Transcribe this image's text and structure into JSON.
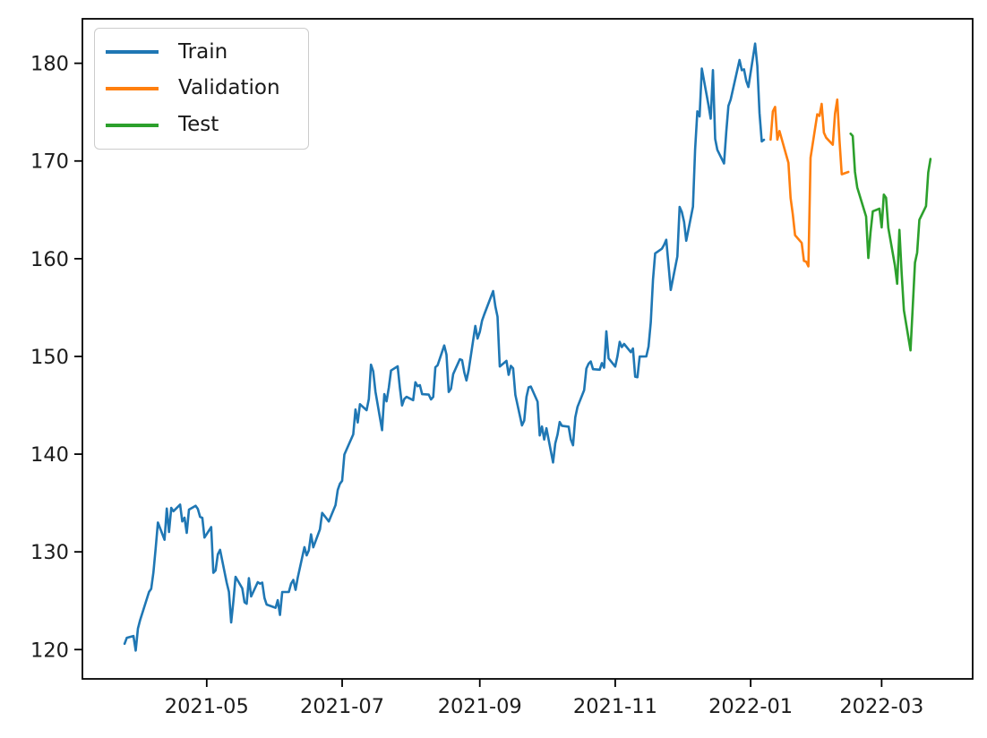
{
  "chart_data": {
    "type": "line",
    "title": "",
    "xlabel": "",
    "ylabel": "",
    "xlim": [
      "2021-03-06",
      "2022-04-11"
    ],
    "ylim": [
      117.0,
      184.55
    ],
    "grid": false,
    "axis_color": "#000000",
    "text_color": "#1c1c1c",
    "x_ticks": [
      {
        "date": "2021-05-01",
        "label": "2021-05"
      },
      {
        "date": "2021-07-01",
        "label": "2021-07"
      },
      {
        "date": "2021-09-01",
        "label": "2021-09"
      },
      {
        "date": "2021-11-01",
        "label": "2021-11"
      },
      {
        "date": "2022-01-01",
        "label": "2022-01"
      },
      {
        "date": "2022-03-01",
        "label": "2022-03"
      }
    ],
    "y_ticks": [
      120,
      130,
      140,
      150,
      160,
      170,
      180
    ],
    "legend": {
      "position": "upper-left",
      "entries": [
        {
          "label": "Train",
          "color": "#1f77b4"
        },
        {
          "label": "Validation",
          "color": "#ff7f0e"
        },
        {
          "label": "Test",
          "color": "#2ca02c"
        }
      ]
    },
    "series": [
      {
        "name": "Train",
        "color": "#1f77b4",
        "points": [
          [
            "2021-03-25",
            120.59
          ],
          [
            "2021-03-26",
            121.21
          ],
          [
            "2021-03-29",
            121.39
          ],
          [
            "2021-03-30",
            119.9
          ],
          [
            "2021-03-31",
            122.15
          ],
          [
            "2021-04-01",
            123.0
          ],
          [
            "2021-04-05",
            125.9
          ],
          [
            "2021-04-06",
            126.21
          ],
          [
            "2021-04-07",
            127.9
          ],
          [
            "2021-04-08",
            130.36
          ],
          [
            "2021-04-09",
            133.0
          ],
          [
            "2021-04-12",
            131.24
          ],
          [
            "2021-04-13",
            134.43
          ],
          [
            "2021-04-14",
            132.03
          ],
          [
            "2021-04-15",
            134.5
          ],
          [
            "2021-04-16",
            134.16
          ],
          [
            "2021-04-19",
            134.84
          ],
          [
            "2021-04-20",
            133.11
          ],
          [
            "2021-04-21",
            133.5
          ],
          [
            "2021-04-22",
            131.94
          ],
          [
            "2021-04-23",
            134.32
          ],
          [
            "2021-04-26",
            134.72
          ],
          [
            "2021-04-27",
            134.39
          ],
          [
            "2021-04-28",
            133.58
          ],
          [
            "2021-04-29",
            133.48
          ],
          [
            "2021-04-30",
            131.46
          ],
          [
            "2021-05-03",
            132.54
          ],
          [
            "2021-05-04",
            127.85
          ],
          [
            "2021-05-05",
            128.1
          ],
          [
            "2021-05-06",
            129.74
          ],
          [
            "2021-05-07",
            130.21
          ],
          [
            "2021-05-10",
            126.85
          ],
          [
            "2021-05-11",
            125.91
          ],
          [
            "2021-05-12",
            122.77
          ],
          [
            "2021-05-13",
            124.97
          ],
          [
            "2021-05-14",
            127.45
          ],
          [
            "2021-05-17",
            126.27
          ],
          [
            "2021-05-18",
            124.85
          ],
          [
            "2021-05-19",
            124.69
          ],
          [
            "2021-05-20",
            127.31
          ],
          [
            "2021-05-21",
            125.43
          ],
          [
            "2021-05-24",
            126.9
          ],
          [
            "2021-05-25",
            126.74
          ],
          [
            "2021-05-26",
            126.85
          ],
          [
            "2021-05-27",
            125.28
          ],
          [
            "2021-05-28",
            124.61
          ],
          [
            "2021-06-01",
            124.28
          ],
          [
            "2021-06-02",
            125.06
          ],
          [
            "2021-06-03",
            123.54
          ],
          [
            "2021-06-04",
            125.89
          ],
          [
            "2021-06-07",
            125.9
          ],
          [
            "2021-06-08",
            126.74
          ],
          [
            "2021-06-09",
            127.13
          ],
          [
            "2021-06-10",
            126.11
          ],
          [
            "2021-06-11",
            127.35
          ],
          [
            "2021-06-14",
            130.48
          ],
          [
            "2021-06-15",
            129.64
          ],
          [
            "2021-06-16",
            130.15
          ],
          [
            "2021-06-17",
            131.79
          ],
          [
            "2021-06-18",
            130.46
          ],
          [
            "2021-06-21",
            132.3
          ],
          [
            "2021-06-22",
            133.98
          ],
          [
            "2021-06-23",
            133.7
          ],
          [
            "2021-06-24",
            133.41
          ],
          [
            "2021-06-25",
            133.11
          ],
          [
            "2021-06-28",
            134.78
          ],
          [
            "2021-06-29",
            136.33
          ],
          [
            "2021-06-30",
            136.96
          ],
          [
            "2021-07-01",
            137.27
          ],
          [
            "2021-07-02",
            139.96
          ],
          [
            "2021-07-06",
            142.02
          ],
          [
            "2021-07-07",
            144.57
          ],
          [
            "2021-07-08",
            143.24
          ],
          [
            "2021-07-09",
            145.11
          ],
          [
            "2021-07-12",
            144.5
          ],
          [
            "2021-07-13",
            145.64
          ],
          [
            "2021-07-14",
            149.15
          ],
          [
            "2021-07-15",
            148.48
          ],
          [
            "2021-07-16",
            146.39
          ],
          [
            "2021-07-19",
            142.45
          ],
          [
            "2021-07-20",
            146.15
          ],
          [
            "2021-07-21",
            145.4
          ],
          [
            "2021-07-22",
            146.8
          ],
          [
            "2021-07-23",
            148.56
          ],
          [
            "2021-07-26",
            148.99
          ],
          [
            "2021-07-27",
            146.77
          ],
          [
            "2021-07-28",
            144.98
          ],
          [
            "2021-07-29",
            145.64
          ],
          [
            "2021-07-30",
            145.86
          ],
          [
            "2021-08-02",
            145.52
          ],
          [
            "2021-08-03",
            147.36
          ],
          [
            "2021-08-04",
            146.95
          ],
          [
            "2021-08-05",
            147.06
          ],
          [
            "2021-08-06",
            146.14
          ],
          [
            "2021-08-09",
            146.09
          ],
          [
            "2021-08-10",
            145.6
          ],
          [
            "2021-08-11",
            145.86
          ],
          [
            "2021-08-12",
            148.89
          ],
          [
            "2021-08-13",
            149.1
          ],
          [
            "2021-08-16",
            151.12
          ],
          [
            "2021-08-17",
            150.19
          ],
          [
            "2021-08-18",
            146.36
          ],
          [
            "2021-08-19",
            146.7
          ],
          [
            "2021-08-20",
            148.19
          ],
          [
            "2021-08-23",
            149.71
          ],
          [
            "2021-08-24",
            149.62
          ],
          [
            "2021-08-25",
            148.36
          ],
          [
            "2021-08-26",
            147.54
          ],
          [
            "2021-08-27",
            148.6
          ],
          [
            "2021-08-30",
            153.12
          ],
          [
            "2021-08-31",
            151.83
          ],
          [
            "2021-09-01",
            152.51
          ],
          [
            "2021-09-02",
            153.65
          ],
          [
            "2021-09-03",
            154.3
          ],
          [
            "2021-09-07",
            156.69
          ],
          [
            "2021-09-08",
            155.11
          ],
          [
            "2021-09-09",
            154.07
          ],
          [
            "2021-09-10",
            148.97
          ],
          [
            "2021-09-13",
            149.55
          ],
          [
            "2021-09-14",
            148.12
          ],
          [
            "2021-09-15",
            149.03
          ],
          [
            "2021-09-16",
            148.79
          ],
          [
            "2021-09-17",
            146.06
          ],
          [
            "2021-09-20",
            142.94
          ],
          [
            "2021-09-21",
            143.43
          ],
          [
            "2021-09-22",
            145.85
          ],
          [
            "2021-09-23",
            146.83
          ],
          [
            "2021-09-24",
            146.92
          ],
          [
            "2021-09-27",
            145.37
          ],
          [
            "2021-09-28",
            141.91
          ],
          [
            "2021-09-29",
            142.83
          ],
          [
            "2021-09-30",
            141.5
          ],
          [
            "2021-10-01",
            142.65
          ],
          [
            "2021-10-04",
            139.14
          ],
          [
            "2021-10-05",
            141.11
          ],
          [
            "2021-10-06",
            142.0
          ],
          [
            "2021-10-07",
            143.29
          ],
          [
            "2021-10-08",
            142.9
          ],
          [
            "2021-10-11",
            142.81
          ],
          [
            "2021-10-12",
            141.51
          ],
          [
            "2021-10-13",
            140.91
          ],
          [
            "2021-10-14",
            143.76
          ],
          [
            "2021-10-15",
            144.84
          ],
          [
            "2021-10-18",
            146.55
          ],
          [
            "2021-10-19",
            148.76
          ],
          [
            "2021-10-20",
            149.26
          ],
          [
            "2021-10-21",
            149.48
          ],
          [
            "2021-10-22",
            148.69
          ],
          [
            "2021-10-25",
            148.64
          ],
          [
            "2021-10-26",
            149.32
          ],
          [
            "2021-10-27",
            148.85
          ],
          [
            "2021-10-28",
            152.57
          ],
          [
            "2021-10-29",
            149.8
          ],
          [
            "2021-11-01",
            148.96
          ],
          [
            "2021-11-02",
            150.02
          ],
          [
            "2021-11-03",
            151.49
          ],
          [
            "2021-11-04",
            150.96
          ],
          [
            "2021-11-05",
            151.28
          ],
          [
            "2021-11-08",
            150.44
          ],
          [
            "2021-11-09",
            150.81
          ],
          [
            "2021-11-10",
            147.92
          ],
          [
            "2021-11-11",
            147.87
          ],
          [
            "2021-11-12",
            149.99
          ],
          [
            "2021-11-15",
            150.0
          ],
          [
            "2021-11-16",
            151.0
          ],
          [
            "2021-11-17",
            153.49
          ],
          [
            "2021-11-18",
            157.87
          ],
          [
            "2021-11-19",
            160.55
          ],
          [
            "2021-11-22",
            161.02
          ],
          [
            "2021-11-23",
            161.41
          ],
          [
            "2021-11-24",
            161.94
          ],
          [
            "2021-11-26",
            156.81
          ],
          [
            "2021-11-29",
            160.24
          ],
          [
            "2021-11-30",
            165.3
          ],
          [
            "2021-12-01",
            164.77
          ],
          [
            "2021-12-02",
            163.76
          ],
          [
            "2021-12-03",
            161.84
          ],
          [
            "2021-12-06",
            165.32
          ],
          [
            "2021-12-07",
            171.18
          ],
          [
            "2021-12-08",
            175.08
          ],
          [
            "2021-12-09",
            174.56
          ],
          [
            "2021-12-10",
            179.45
          ],
          [
            "2021-12-13",
            175.74
          ],
          [
            "2021-12-14",
            174.33
          ],
          [
            "2021-12-15",
            179.3
          ],
          [
            "2021-12-16",
            172.26
          ],
          [
            "2021-12-17",
            171.14
          ],
          [
            "2021-12-20",
            169.75
          ],
          [
            "2021-12-21",
            172.99
          ],
          [
            "2021-12-22",
            175.64
          ],
          [
            "2021-12-23",
            176.28
          ],
          [
            "2021-12-27",
            180.33
          ],
          [
            "2021-12-28",
            179.29
          ],
          [
            "2021-12-29",
            179.38
          ],
          [
            "2021-12-30",
            178.2
          ],
          [
            "2021-12-31",
            177.57
          ],
          [
            "2022-01-03",
            182.01
          ],
          [
            "2022-01-04",
            179.7
          ],
          [
            "2022-01-05",
            174.92
          ],
          [
            "2022-01-06",
            172.0
          ],
          [
            "2022-01-07",
            172.17
          ]
        ]
      },
      {
        "name": "Validation",
        "color": "#ff7f0e",
        "points": [
          [
            "2022-01-10",
            172.19
          ],
          [
            "2022-01-11",
            175.08
          ],
          [
            "2022-01-12",
            175.53
          ],
          [
            "2022-01-13",
            172.19
          ],
          [
            "2022-01-14",
            173.07
          ],
          [
            "2022-01-18",
            169.8
          ],
          [
            "2022-01-19",
            166.23
          ],
          [
            "2022-01-20",
            164.51
          ],
          [
            "2022-01-21",
            162.41
          ],
          [
            "2022-01-24",
            161.62
          ],
          [
            "2022-01-25",
            159.78
          ],
          [
            "2022-01-26",
            159.69
          ],
          [
            "2022-01-27",
            159.22
          ],
          [
            "2022-01-28",
            170.33
          ],
          [
            "2022-01-31",
            174.78
          ],
          [
            "2022-02-01",
            174.61
          ],
          [
            "2022-02-02",
            175.84
          ],
          [
            "2022-02-03",
            172.9
          ],
          [
            "2022-02-04",
            172.39
          ],
          [
            "2022-02-07",
            171.66
          ],
          [
            "2022-02-08",
            174.83
          ],
          [
            "2022-02-09",
            176.28
          ],
          [
            "2022-02-10",
            172.12
          ],
          [
            "2022-02-11",
            168.64
          ],
          [
            "2022-02-14",
            168.88
          ]
        ]
      },
      {
        "name": "Test",
        "color": "#2ca02c",
        "points": [
          [
            "2022-02-15",
            172.79
          ],
          [
            "2022-02-16",
            172.55
          ],
          [
            "2022-02-17",
            168.88
          ],
          [
            "2022-02-18",
            167.3
          ],
          [
            "2022-02-22",
            164.32
          ],
          [
            "2022-02-23",
            160.07
          ],
          [
            "2022-02-24",
            162.74
          ],
          [
            "2022-02-25",
            164.85
          ],
          [
            "2022-02-28",
            165.12
          ],
          [
            "2022-03-01",
            163.2
          ],
          [
            "2022-03-02",
            166.56
          ],
          [
            "2022-03-03",
            166.23
          ],
          [
            "2022-03-04",
            163.17
          ],
          [
            "2022-03-07",
            159.3
          ],
          [
            "2022-03-08",
            157.44
          ],
          [
            "2022-03-09",
            162.95
          ],
          [
            "2022-03-10",
            158.52
          ],
          [
            "2022-03-11",
            154.73
          ],
          [
            "2022-03-14",
            150.62
          ],
          [
            "2022-03-15",
            155.09
          ],
          [
            "2022-03-16",
            159.59
          ],
          [
            "2022-03-17",
            160.62
          ],
          [
            "2022-03-18",
            163.98
          ],
          [
            "2022-03-21",
            165.38
          ],
          [
            "2022-03-22",
            168.82
          ],
          [
            "2022-03-23",
            170.21
          ]
        ]
      }
    ]
  }
}
